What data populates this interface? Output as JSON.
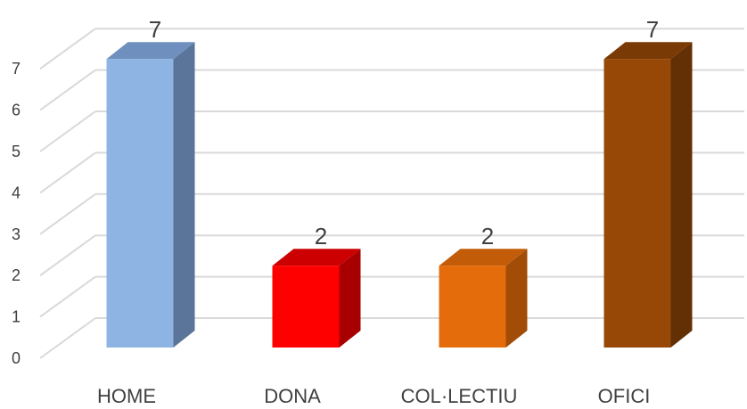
{
  "chart_data": {
    "type": "bar",
    "style": "3d-column",
    "categories": [
      "HOME",
      "DONA",
      "COL·LECTIU",
      "OFICI"
    ],
    "values": [
      7,
      2,
      2,
      7
    ],
    "data_labels": [
      "7",
      "2",
      "2",
      "7"
    ],
    "ylim": [
      0,
      7
    ],
    "yticks": [
      "0",
      "1",
      "2",
      "3",
      "4",
      "5",
      "6",
      "7"
    ],
    "grid": true,
    "legend": "none",
    "colors": [
      {
        "front": "#8EB4E3",
        "side": "#5A7599",
        "top": "#6F8FBF"
      },
      {
        "front": "#FF0000",
        "side": "#A80000",
        "top": "#CC0000"
      },
      {
        "front": "#E46C0A",
        "side": "#A14D07",
        "top": "#C25C08"
      },
      {
        "front": "#974706",
        "side": "#632F04",
        "top": "#7A3A05"
      }
    ],
    "grid_color": "#D9D9D9"
  }
}
